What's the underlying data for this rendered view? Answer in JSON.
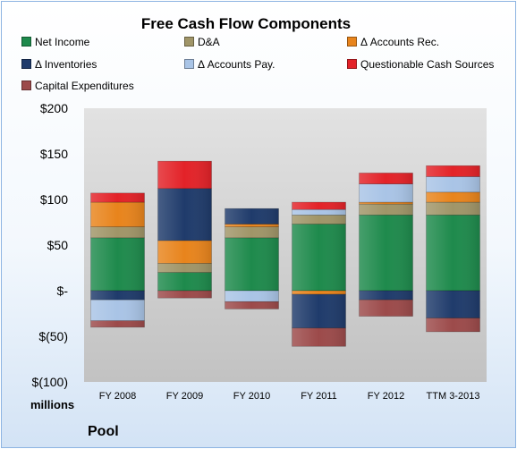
{
  "chart_data": {
    "type": "bar",
    "stacked": true,
    "title": "Free Cash Flow Components",
    "categories": [
      "FY 2008",
      "FY 2009",
      "FY 2010",
      "FY 2011",
      "FY 2012",
      "TTM 3-2013"
    ],
    "ylim": [
      -100,
      200
    ],
    "yticks": [
      200,
      150,
      100,
      50,
      0,
      -50,
      -100
    ],
    "ytick_labels": [
      "$200",
      "$150",
      "$100",
      "$50",
      "$-",
      "$(50)",
      "$(100)"
    ],
    "units_label": "millions",
    "legend_position": "top",
    "grid": false,
    "series": [
      {
        "name": "Net Income",
        "color": "#1e8a4c",
        "values": [
          58,
          20,
          58,
          73,
          83,
          83
        ]
      },
      {
        "name": "D&A",
        "color": "#a09568",
        "values": [
          12,
          10,
          12,
          10,
          12,
          14
        ]
      },
      {
        "name": "Δ Accounts Rec.",
        "color": "#e8841c",
        "values": [
          27,
          25,
          3,
          -4,
          2,
          11
        ]
      },
      {
        "name": "Δ Inventories",
        "color": "#1f3b6b",
        "values": [
          -10,
          57,
          17,
          -37,
          -10,
          -30
        ]
      },
      {
        "name": "Δ Accounts Pay.",
        "color": "#a9c4e6",
        "values": [
          -23,
          0,
          -12,
          6,
          20,
          17
        ]
      },
      {
        "name": "Questionable Cash Sources",
        "color": "#e32228",
        "values": [
          10,
          30,
          0,
          8,
          12,
          12
        ]
      },
      {
        "name": "Capital Expenditures",
        "color": "#9c4a4a",
        "values": [
          -7,
          -8,
          -8,
          -20,
          -18,
          -15
        ]
      }
    ]
  },
  "footer": {
    "company": "Pool"
  }
}
